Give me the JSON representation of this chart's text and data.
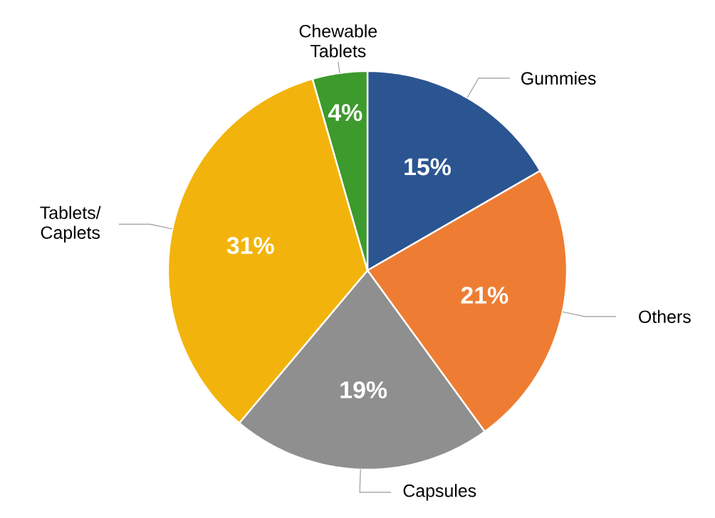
{
  "chart_data": {
    "type": "pie",
    "categories": [
      "Gummies",
      "Others",
      "Capsules",
      "Tablets/ Caplets",
      "Chewable Tablets"
    ],
    "values": [
      15,
      21,
      19,
      31,
      4
    ],
    "value_labels": [
      "15%",
      "21%",
      "19%",
      "31%",
      "4%"
    ],
    "colors": [
      "#2b5591",
      "#ee7d33",
      "#8f8f8f",
      "#f2b40c",
      "#3d9a2c"
    ]
  }
}
